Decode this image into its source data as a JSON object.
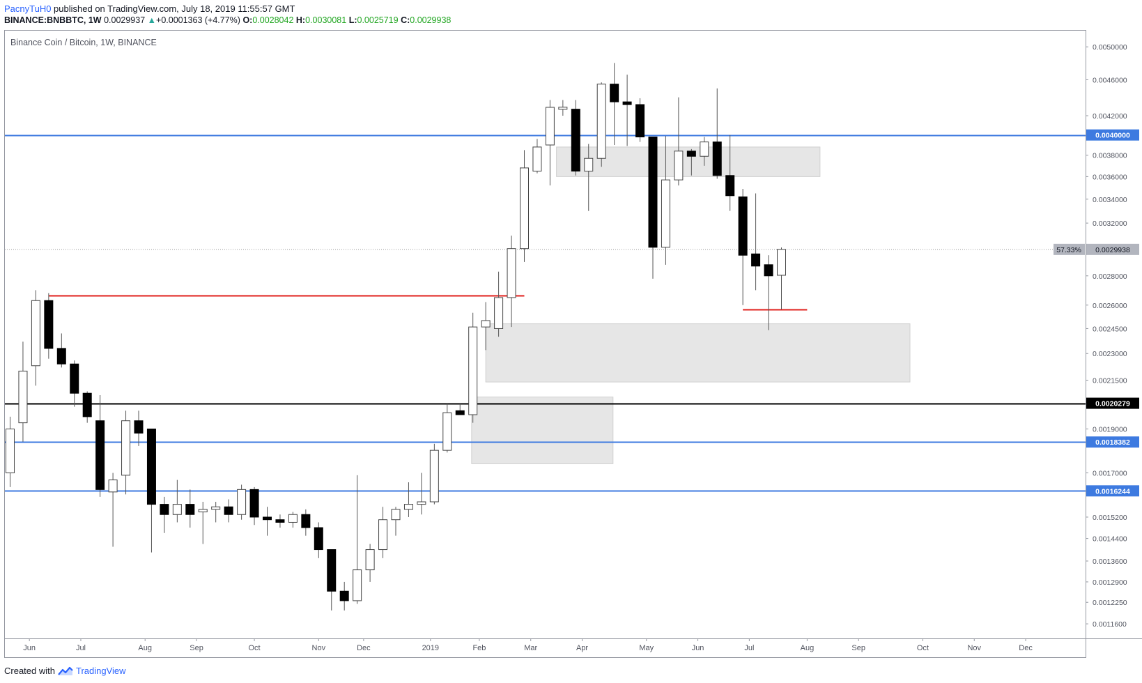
{
  "header": {
    "author": "PacnyTuH0",
    "published_text": " published on TradingView.com, July 18, 2019 11:55:57 GMT",
    "symbol": "BINANCE:BNBBTC, 1W",
    "last": "0.0029937",
    "change_arrow": "▲",
    "change": "+0.0001363 (+4.77%)",
    "o_label": "O:",
    "o_value": "0.0028042",
    "h_label": "H:",
    "h_value": "0.0030081",
    "l_label": "L:",
    "l_value": "0.0025719",
    "c_label": "C:",
    "c_value": "0.0029938"
  },
  "footer": {
    "created_with": "Created with",
    "brand": "TradingView"
  },
  "colors": {
    "bull_fill": "#ffffff",
    "bear_fill": "#000000",
    "wick": "#555555",
    "blue_line": "#3d7ae0",
    "black_line": "#000000",
    "red_line": "#e0201c",
    "zone_fill": "#e2e2e2",
    "zone_stroke": "#c8c8c8"
  },
  "chart_data": {
    "type": "candlestick",
    "title": "Binance Coin / Bitcoin, 1W, BINANCE",
    "y_scale": "log",
    "ylim": [
      0.00112,
      0.0052
    ],
    "y_ticks": [
      "0.0050000",
      "0.0046000",
      "0.0042000",
      "0.0038000",
      "0.0036000",
      "0.0034000",
      "0.0032000",
      "0.0028000",
      "0.0026000",
      "0.0024500",
      "0.0023000",
      "0.0021500",
      "0.0019000",
      "0.0017000",
      "0.0015200",
      "0.0014400",
      "0.0013600",
      "0.0012900",
      "0.0012250",
      "0.0011600"
    ],
    "x_labels": [
      "Jun",
      "Jul",
      "Aug",
      "Sep",
      "Oct",
      "Nov",
      "Dec",
      "2019",
      "Feb",
      "Mar",
      "Apr",
      "May",
      "Jun",
      "Jul",
      "Aug",
      "Sep",
      "Oct",
      "Nov",
      "Dec"
    ],
    "x_label_week_index": [
      1.5,
      5.5,
      10.5,
      14.5,
      19,
      24,
      27.5,
      32.7,
      36.5,
      40.5,
      44.5,
      49.5,
      53.5,
      57.5,
      62,
      66,
      71,
      75,
      79
    ],
    "candles": [
      {
        "o": 0.0017,
        "h": 0.00196,
        "l": 0.00164,
        "c": 0.0019
      },
      {
        "o": 0.00193,
        "h": 0.00237,
        "l": 0.00184,
        "c": 0.0022
      },
      {
        "o": 0.00223,
        "h": 0.0027,
        "l": 0.00212,
        "c": 0.00263
      },
      {
        "o": 0.00263,
        "h": 0.00268,
        "l": 0.00227,
        "c": 0.00233
      },
      {
        "o": 0.00233,
        "h": 0.00242,
        "l": 0.00222,
        "c": 0.00224
      },
      {
        "o": 0.00224,
        "h": 0.00226,
        "l": 0.00201,
        "c": 0.00208
      },
      {
        "o": 0.00208,
        "h": 0.00209,
        "l": 0.00193,
        "c": 0.00196
      },
      {
        "o": 0.00194,
        "h": 0.00207,
        "l": 0.0016,
        "c": 0.00163
      },
      {
        "o": 0.00162,
        "h": 0.0017,
        "l": 0.00141,
        "c": 0.00167
      },
      {
        "o": 0.00169,
        "h": 0.00199,
        "l": 0.00161,
        "c": 0.00194
      },
      {
        "o": 0.00194,
        "h": 0.00199,
        "l": 0.00182,
        "c": 0.00188
      },
      {
        "o": 0.0019,
        "h": 0.0019,
        "l": 0.00139,
        "c": 0.00157
      },
      {
        "o": 0.00157,
        "h": 0.0016,
        "l": 0.00146,
        "c": 0.00153
      },
      {
        "o": 0.00153,
        "h": 0.00167,
        "l": 0.0015,
        "c": 0.00157
      },
      {
        "o": 0.00157,
        "h": 0.00163,
        "l": 0.00148,
        "c": 0.00153
      },
      {
        "o": 0.00154,
        "h": 0.00158,
        "l": 0.00142,
        "c": 0.00155
      },
      {
        "o": 0.00155,
        "h": 0.00158,
        "l": 0.0015,
        "c": 0.00156
      },
      {
        "o": 0.00156,
        "h": 0.00159,
        "l": 0.0015,
        "c": 0.00153
      },
      {
        "o": 0.00153,
        "h": 0.00165,
        "l": 0.00151,
        "c": 0.00163
      },
      {
        "o": 0.00163,
        "h": 0.00164,
        "l": 0.00149,
        "c": 0.00152
      },
      {
        "o": 0.00152,
        "h": 0.00156,
        "l": 0.00145,
        "c": 0.00151
      },
      {
        "o": 0.00151,
        "h": 0.00153,
        "l": 0.00148,
        "c": 0.0015
      },
      {
        "o": 0.0015,
        "h": 0.00154,
        "l": 0.00148,
        "c": 0.00153
      },
      {
        "o": 0.00153,
        "h": 0.00155,
        "l": 0.00145,
        "c": 0.00148
      },
      {
        "o": 0.00148,
        "h": 0.0015,
        "l": 0.00137,
        "c": 0.0014
      },
      {
        "o": 0.0014,
        "h": 0.0014,
        "l": 0.0012,
        "c": 0.00126
      },
      {
        "o": 0.00126,
        "h": 0.00129,
        "l": 0.0012,
        "c": 0.00123
      },
      {
        "o": 0.00123,
        "h": 0.00169,
        "l": 0.00122,
        "c": 0.00133
      },
      {
        "o": 0.00133,
        "h": 0.00142,
        "l": 0.00129,
        "c": 0.0014
      },
      {
        "o": 0.0014,
        "h": 0.00156,
        "l": 0.00137,
        "c": 0.00151
      },
      {
        "o": 0.00151,
        "h": 0.00156,
        "l": 0.00145,
        "c": 0.00155
      },
      {
        "o": 0.00155,
        "h": 0.00166,
        "l": 0.00152,
        "c": 0.00157
      },
      {
        "o": 0.00157,
        "h": 0.0017,
        "l": 0.00153,
        "c": 0.00158
      },
      {
        "o": 0.00158,
        "h": 0.00183,
        "l": 0.00157,
        "c": 0.0018
      },
      {
        "o": 0.0018,
        "h": 0.00203,
        "l": 0.00179,
        "c": 0.00198
      },
      {
        "o": 0.00199,
        "h": 0.00203,
        "l": 0.00197,
        "c": 0.00197
      },
      {
        "o": 0.00197,
        "h": 0.00255,
        "l": 0.00193,
        "c": 0.00246
      },
      {
        "o": 0.00246,
        "h": 0.00262,
        "l": 0.00232,
        "c": 0.0025
      },
      {
        "o": 0.00245,
        "h": 0.00283,
        "l": 0.0024,
        "c": 0.00265
      },
      {
        "o": 0.00265,
        "h": 0.0031,
        "l": 0.00246,
        "c": 0.003
      },
      {
        "o": 0.003,
        "h": 0.00385,
        "l": 0.0029,
        "c": 0.00368
      },
      {
        "o": 0.00365,
        "h": 0.00396,
        "l": 0.00363,
        "c": 0.00388
      },
      {
        "o": 0.0039,
        "h": 0.00437,
        "l": 0.00352,
        "c": 0.00429
      },
      {
        "o": 0.00428,
        "h": 0.00437,
        "l": 0.0042,
        "c": 0.00428
      },
      {
        "o": 0.00427,
        "h": 0.00437,
        "l": 0.00361,
        "c": 0.00365
      },
      {
        "o": 0.00365,
        "h": 0.00391,
        "l": 0.0033,
        "c": 0.00377
      },
      {
        "o": 0.00377,
        "h": 0.00457,
        "l": 0.00369,
        "c": 0.00455
      },
      {
        "o": 0.00455,
        "h": 0.0048,
        "l": 0.0039,
        "c": 0.00435
      },
      {
        "o": 0.00435,
        "h": 0.00466,
        "l": 0.00389,
        "c": 0.00432
      },
      {
        "o": 0.00432,
        "h": 0.00439,
        "l": 0.00393,
        "c": 0.00398
      },
      {
        "o": 0.00398,
        "h": 0.00398,
        "l": 0.00278,
        "c": 0.00301
      },
      {
        "o": 0.00301,
        "h": 0.00399,
        "l": 0.00288,
        "c": 0.00357
      },
      {
        "o": 0.00357,
        "h": 0.0044,
        "l": 0.00352,
        "c": 0.00384
      },
      {
        "o": 0.00384,
        "h": 0.00386,
        "l": 0.00361,
        "c": 0.00379
      },
      {
        "o": 0.00379,
        "h": 0.00398,
        "l": 0.0037,
        "c": 0.00393
      },
      {
        "o": 0.00393,
        "h": 0.0045,
        "l": 0.00358,
        "c": 0.00361
      },
      {
        "o": 0.00361,
        "h": 0.004,
        "l": 0.0033,
        "c": 0.00343
      },
      {
        "o": 0.00342,
        "h": 0.00349,
        "l": 0.0026,
        "c": 0.00295
      },
      {
        "o": 0.00296,
        "h": 0.00345,
        "l": 0.0027,
        "c": 0.00287
      },
      {
        "o": 0.00288,
        "h": 0.00295,
        "l": 0.00244,
        "c": 0.0028
      },
      {
        "o": 0.002804,
        "h": 0.003008,
        "l": 0.002572,
        "c": 0.002994
      }
    ],
    "annotations": {
      "hlines_blue": [
        0.004,
        0.0018382,
        0.0016244
      ],
      "hline_black": 0.0020279,
      "red_segments": [
        {
          "price": 0.002665,
          "from_week": 3,
          "to_week": 40
        },
        {
          "price": 0.0025719,
          "from_week": 57,
          "to_week": 62
        }
      ],
      "zones": [
        {
          "from_week": 42.5,
          "to_week": 63,
          "top": 0.00388,
          "bottom": 0.0036
        },
        {
          "from_week": 37,
          "to_week": 70,
          "top": 0.00248,
          "bottom": 0.00214
        },
        {
          "from_week": 35.9,
          "to_week": 46.9,
          "top": 0.00206,
          "bottom": 0.00174
        }
      ],
      "price_labels": {
        "blue_top": "0.0040000",
        "black": "0.0020279",
        "blue_mid": "0.0018382",
        "blue_low": "0.0016244",
        "current": "0.0029938",
        "current_pct": "57.33%"
      },
      "current_price": 0.0029938
    }
  }
}
